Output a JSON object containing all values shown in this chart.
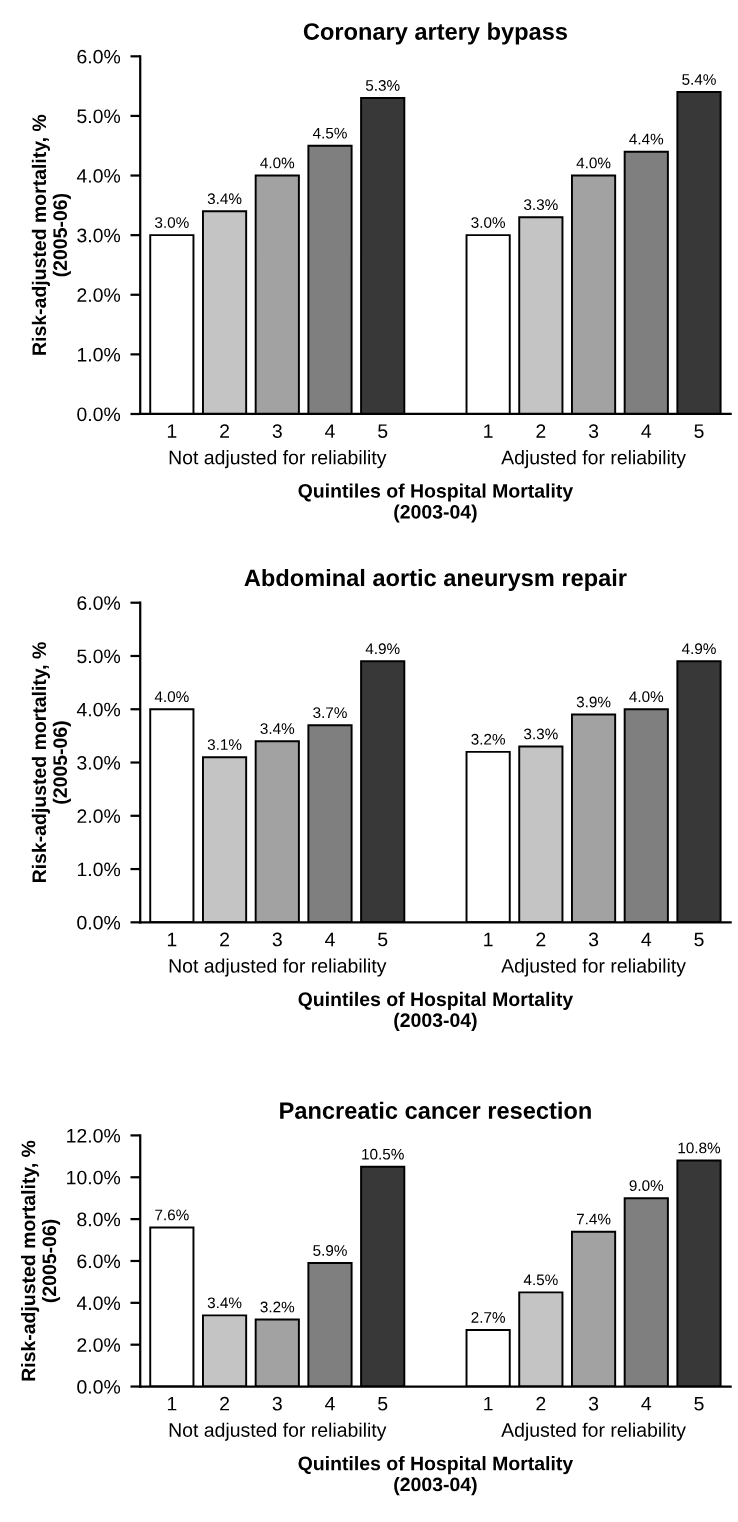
{
  "chart_data": [
    {
      "type": "bar",
      "title": "Coronary artery bypass",
      "xlabel": "Quintiles of Hospital Mortality\n(2003-04)",
      "ylabel": "Risk-adjusted mortality, %\n(2005-06)",
      "categories": [
        "1",
        "2",
        "3",
        "4",
        "5",
        null,
        "1",
        "2",
        "3",
        "4",
        "5"
      ],
      "values": [
        3.0,
        3.4,
        4.0,
        4.5,
        5.3,
        null,
        3.0,
        3.3,
        4.0,
        4.4,
        5.4
      ],
      "value_labels": [
        "3.0%",
        "3.4%",
        "4.0%",
        "4.5%",
        "5.3%",
        null,
        "3.0%",
        "3.3%",
        "4.0%",
        "4.4%",
        "5.4%"
      ],
      "colors": [
        "#ffffff",
        "#c4c4c4",
        "#a2a2a2",
        "#7f7f7f",
        "#383838",
        "#ffffff",
        "#ffffff",
        "#c4c4c4",
        "#a2a2a2",
        "#7f7f7f",
        "#383838"
      ],
      "ylim": [
        0,
        6
      ],
      "yticks": [
        {
          "value": 0,
          "label": "0.0%"
        },
        {
          "value": 1,
          "label": "1.0%"
        },
        {
          "value": 2,
          "label": "2.0%"
        },
        {
          "value": 3,
          "label": "3.0%"
        },
        {
          "value": 4,
          "label": "4.0%"
        },
        {
          "value": 5,
          "label": "5.0%"
        },
        {
          "value": 6,
          "label": "6.0%"
        }
      ],
      "annotations": [
        "Not adjusted for reliability",
        "Adjusted for reliability"
      ]
    },
    {
      "type": "bar",
      "title": "Abdominal aortic aneurysm repair",
      "xlabel": "Quintiles of Hospital Mortality\n(2003-04)",
      "ylabel": "Risk-adjusted mortality, %\n(2005-06)",
      "categories": [
        "1",
        "2",
        "3",
        "4",
        "5",
        null,
        "1",
        "2",
        "3",
        "4",
        "5"
      ],
      "values": [
        4.0,
        3.1,
        3.4,
        3.7,
        4.9,
        null,
        3.2,
        3.3,
        3.9,
        4.0,
        4.9
      ],
      "value_labels": [
        "4.0%",
        "3.1%",
        "3.4%",
        "3.7%",
        "4.9%",
        null,
        "3.2%",
        "3.3%",
        "3.9%",
        "4.0%",
        "4.9%"
      ],
      "colors": [
        "#ffffff",
        "#c4c4c4",
        "#a2a2a2",
        "#7f7f7f",
        "#383838",
        "#ffffff",
        "#ffffff",
        "#c4c4c4",
        "#a2a2a2",
        "#7f7f7f",
        "#383838"
      ],
      "ylim": [
        0,
        6
      ],
      "yticks": [
        {
          "value": 0,
          "label": "0.0%"
        },
        {
          "value": 1,
          "label": "1.0%"
        },
        {
          "value": 2,
          "label": "2.0%"
        },
        {
          "value": 3,
          "label": "3.0%"
        },
        {
          "value": 4,
          "label": "4.0%"
        },
        {
          "value": 5,
          "label": "5.0%"
        },
        {
          "value": 6,
          "label": "6.0%"
        }
      ],
      "annotations": [
        "Not adjusted for reliability",
        "Adjusted for reliability"
      ]
    },
    {
      "type": "bar",
      "title": "Pancreatic cancer resection",
      "xlabel": "Quintiles of Hospital Mortality\n(2003-04)",
      "ylabel": "Risk-adjusted mortality, %\n(2005-06)",
      "categories": [
        "1",
        "2",
        "3",
        "4",
        "5",
        null,
        "1",
        "2",
        "3",
        "4",
        "5"
      ],
      "values": [
        7.6,
        3.4,
        3.2,
        5.9,
        10.5,
        null,
        2.7,
        4.5,
        7.4,
        9.0,
        10.8
      ],
      "value_labels": [
        "7.6%",
        "3.4%",
        "3.2%",
        "5.9%",
        "10.5%",
        null,
        "2.7%",
        "4.5%",
        "7.4%",
        "9.0%",
        "10.8%"
      ],
      "colors": [
        "#ffffff",
        "#c4c4c4",
        "#a2a2a2",
        "#7f7f7f",
        "#383838",
        "#ffffff",
        "#ffffff",
        "#c4c4c4",
        "#a2a2a2",
        "#7f7f7f",
        "#383838"
      ],
      "ylim": [
        0,
        12
      ],
      "yticks": [
        {
          "value": 0,
          "label": "0.0%"
        },
        {
          "value": 2,
          "label": "2.0%"
        },
        {
          "value": 4,
          "label": "4.0%"
        },
        {
          "value": 6,
          "label": "6.0%"
        },
        {
          "value": 8,
          "label": "8.0%"
        },
        {
          "value": 10,
          "label": "10.0%"
        },
        {
          "value": 12,
          "label": "12.0%"
        }
      ],
      "annotations": [
        "Not adjusted for reliability",
        "Adjusted for reliability"
      ]
    }
  ]
}
